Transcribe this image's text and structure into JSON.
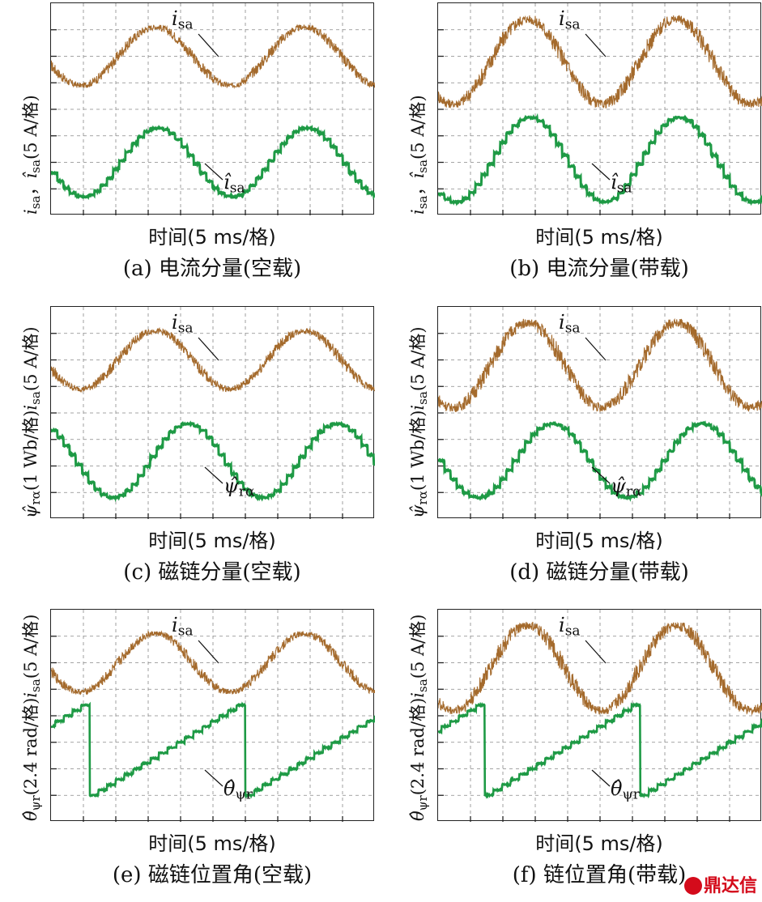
{
  "colors": {
    "current": "#a46a2c",
    "estimate": "#1e9a45",
    "grid": "#888888",
    "brand": "#d40b1b"
  },
  "brand": {
    "name": "鼎达信",
    "icon": "brand-logo-icon"
  },
  "panels": [
    {
      "id": "a",
      "caption": "(a) 电流分量(空载)",
      "xlabel": "时间(5 ms/格)",
      "ylabel": {
        "sym1": "i",
        "sub1": "sa",
        "sep": "，",
        "sym2": "î",
        "sub2": "sa",
        "scale": "(5 A/格)"
      },
      "labels": {
        "top": {
          "sym": "i",
          "sub": "sa"
        },
        "bottom": {
          "sym": "î",
          "sub": "sa"
        }
      }
    },
    {
      "id": "b",
      "caption": "(b) 电流分量(带载)",
      "xlabel": "时间(5 ms/格)",
      "ylabel": {
        "sym1": "i",
        "sub1": "sa",
        "sep": "，",
        "sym2": "î",
        "sub2": "sa",
        "scale": "(5 A/格)"
      },
      "labels": {
        "top": {
          "sym": "i",
          "sub": "sa"
        },
        "bottom": {
          "sym": "î",
          "sub": "sa"
        }
      }
    },
    {
      "id": "c",
      "caption": "(c) 磁链分量(空载)",
      "xlabel": "时间(5 ms/格)",
      "ylabel": {
        "sym1": "ψ̂",
        "sub1": "rα",
        "sep": "",
        "mid": "(1 Wb/格)",
        "sym2": "i",
        "sub2": "sa",
        "scale": "(5 A/格)"
      },
      "labels": {
        "top": {
          "sym": "i",
          "sub": "sa"
        },
        "bottom": {
          "sym": "ψ̂",
          "sub": "rα"
        }
      }
    },
    {
      "id": "d",
      "caption": "(d) 磁链分量(带载)",
      "xlabel": "时间(5 ms/格)",
      "ylabel": {
        "sym1": "ψ̂",
        "sub1": "rα",
        "sep": "",
        "mid": "(1 Wb/格)",
        "sym2": "i",
        "sub2": "sa",
        "scale": "(5 A/格)"
      },
      "labels": {
        "top": {
          "sym": "i",
          "sub": "sa"
        },
        "bottom": {
          "sym": "ψ̂",
          "sub": "rα"
        }
      }
    },
    {
      "id": "e",
      "caption": "(e) 磁链位置角(空载)",
      "xlabel": "时间(5 ms/格)",
      "ylabel": {
        "sym1": "θ̂",
        "sub1": "ψr",
        "sep": "",
        "mid": "(2.4 rad/格)",
        "sym2": "i",
        "sub2": "sa",
        "scale": "(5 A/格)"
      },
      "labels": {
        "top": {
          "sym": "i",
          "sub": "sa"
        },
        "bottom": {
          "sym": "θ̂",
          "sub": "ψr"
        }
      }
    },
    {
      "id": "f",
      "caption": "(f) 链位置角(带载)",
      "xlabel": "时间(5 ms/格)",
      "ylabel": {
        "sym1": "θ̂",
        "sub1": "ψr",
        "sep": "",
        "mid": "(2.4 rad/格)",
        "sym2": "i",
        "sub2": "sa",
        "scale": "(5 A/格)"
      },
      "labels": {
        "top": {
          "sym": "i",
          "sub": "sa"
        },
        "bottom": {
          "sym": "θ̂",
          "sub": "ψr"
        }
      }
    }
  ],
  "chart_data": [
    {
      "id": "a",
      "type": "line",
      "grid": true,
      "x_divisions": 10,
      "y_divisions": 8,
      "series": [
        {
          "kind": "sine",
          "amplitude_div": 1.1,
          "offset_div": 2.0,
          "period_div": 4.6,
          "phase": 0.55,
          "noise": 0.22
        },
        {
          "kind": "stair-sine",
          "amplitude_div": 1.3,
          "offset_div": -2.0,
          "period_div": 4.6,
          "phase": 0.55,
          "steps": 6
        }
      ]
    },
    {
      "id": "b",
      "type": "line",
      "grid": true,
      "x_divisions": 10,
      "y_divisions": 8,
      "series": [
        {
          "kind": "sine",
          "amplitude_div": 1.6,
          "offset_div": 1.8,
          "period_div": 4.6,
          "phase": 0.65,
          "noise": 0.35
        },
        {
          "kind": "stair-sine",
          "amplitude_div": 1.6,
          "offset_div": -1.9,
          "period_div": 4.6,
          "phase": 0.65,
          "steps": 6
        }
      ]
    },
    {
      "id": "c",
      "type": "line",
      "grid": true,
      "x_divisions": 10,
      "y_divisions": 8,
      "series": [
        {
          "kind": "sine",
          "amplitude_div": 1.1,
          "offset_div": 2.0,
          "period_div": 4.6,
          "phase": 0.55,
          "noise": 0.22
        },
        {
          "kind": "stair-sine",
          "amplitude_div": 1.4,
          "offset_div": -1.8,
          "period_div": 4.6,
          "phase": 0.35,
          "steps": 6
        }
      ]
    },
    {
      "id": "d",
      "type": "line",
      "grid": true,
      "x_divisions": 10,
      "y_divisions": 8,
      "series": [
        {
          "kind": "sine",
          "amplitude_div": 1.6,
          "offset_div": 1.8,
          "period_div": 4.6,
          "phase": 0.65,
          "noise": 0.35
        },
        {
          "kind": "stair-sine",
          "amplitude_div": 1.4,
          "offset_div": -1.8,
          "period_div": 4.6,
          "phase": 0.5,
          "steps": 6
        }
      ]
    },
    {
      "id": "e",
      "type": "line",
      "grid": true,
      "x_divisions": 10,
      "y_divisions": 8,
      "series": [
        {
          "kind": "sine",
          "amplitude_div": 1.1,
          "offset_div": 2.0,
          "period_div": 4.6,
          "phase": 0.55,
          "noise": 0.22
        },
        {
          "kind": "stair-saw",
          "low_div": -3.0,
          "high_div": 0.6,
          "period_div": 4.8,
          "phase": 0.75,
          "steps": 18
        }
      ]
    },
    {
      "id": "f",
      "type": "line",
      "grid": true,
      "x_divisions": 10,
      "y_divisions": 8,
      "series": [
        {
          "kind": "sine",
          "amplitude_div": 1.6,
          "offset_div": 1.8,
          "period_div": 4.6,
          "phase": 0.65,
          "noise": 0.35
        },
        {
          "kind": "stair-saw",
          "low_div": -3.0,
          "high_div": 0.6,
          "period_div": 4.8,
          "phase": 0.7,
          "steps": 18
        }
      ]
    }
  ]
}
